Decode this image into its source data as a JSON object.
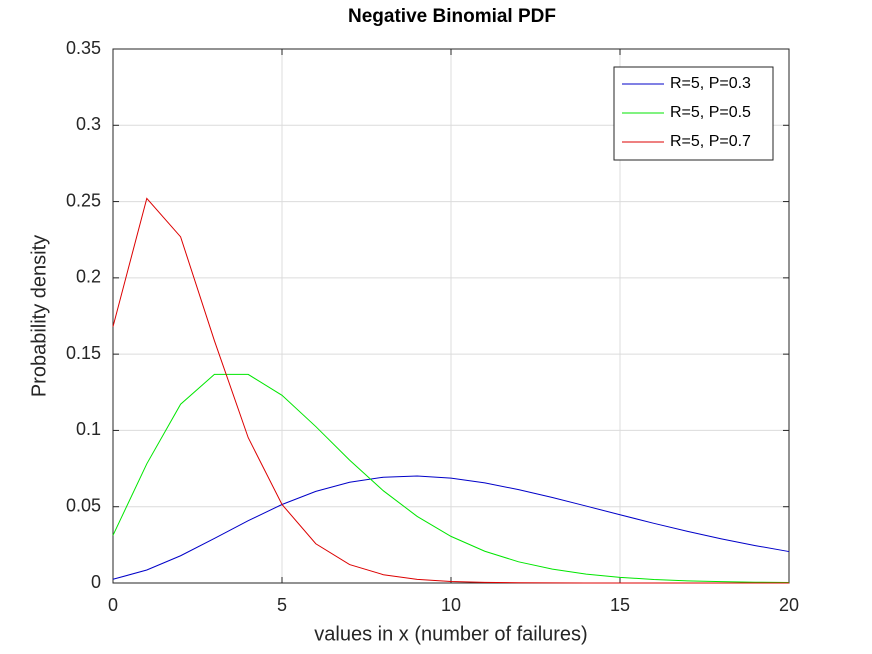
{
  "chart_data": {
    "type": "line",
    "title": "Negative Binomial PDF",
    "x_label": "values in x (number of failures)",
    "y_label": "Probability density",
    "x": [
      0,
      1,
      2,
      3,
      4,
      5,
      6,
      7,
      8,
      9,
      10,
      11,
      12,
      13,
      14,
      15,
      16,
      17,
      18,
      19,
      20
    ],
    "series": [
      {
        "name": "R=5, P=0.3",
        "color": "#0000c8",
        "values": [
          0.00243,
          0.008505,
          0.017861,
          0.029172,
          0.040841,
          0.05146,
          0.060036,
          0.06604,
          0.069342,
          0.070111,
          0.06871,
          0.065587,
          0.061214,
          0.056034,
          0.05043,
          0.044715,
          0.039126,
          0.033832,
          0.028945,
          0.024527,
          0.020603
        ]
      },
      {
        "name": "R=5, P=0.5",
        "color": "#00e600",
        "values": [
          0.03125,
          0.078125,
          0.117188,
          0.136719,
          0.136719,
          0.123047,
          0.102539,
          0.080566,
          0.060425,
          0.04364,
          0.030548,
          0.020826,
          0.013884,
          0.009076,
          0.005835,
          0.003696,
          0.00231,
          0.001427,
          0.000872,
          0.000528,
          0.000317
        ]
      },
      {
        "name": "R=5, P=0.7",
        "color": "#dc0000",
        "values": [
          0.16807,
          0.252105,
          0.226895,
          0.158826,
          0.095296,
          0.05146,
          0.02573,
          0.012093,
          0.005442,
          0.002358,
          0.00099,
          0.000405,
          0.000162,
          6.36e-05,
          2.45e-05,
          9.3e-06,
          3.5e-06,
          1.3e-06,
          4.8e-07,
          1.7e-07,
          6e-08
        ]
      }
    ],
    "xlim": [
      0,
      20
    ],
    "xticks": [
      0,
      5,
      10,
      15,
      20
    ],
    "ylim": [
      0,
      0.35
    ],
    "yticks": [
      0,
      0.05,
      0.1,
      0.15,
      0.2,
      0.25,
      0.3,
      0.35
    ],
    "grid": true,
    "legend_position": "upper-right"
  }
}
